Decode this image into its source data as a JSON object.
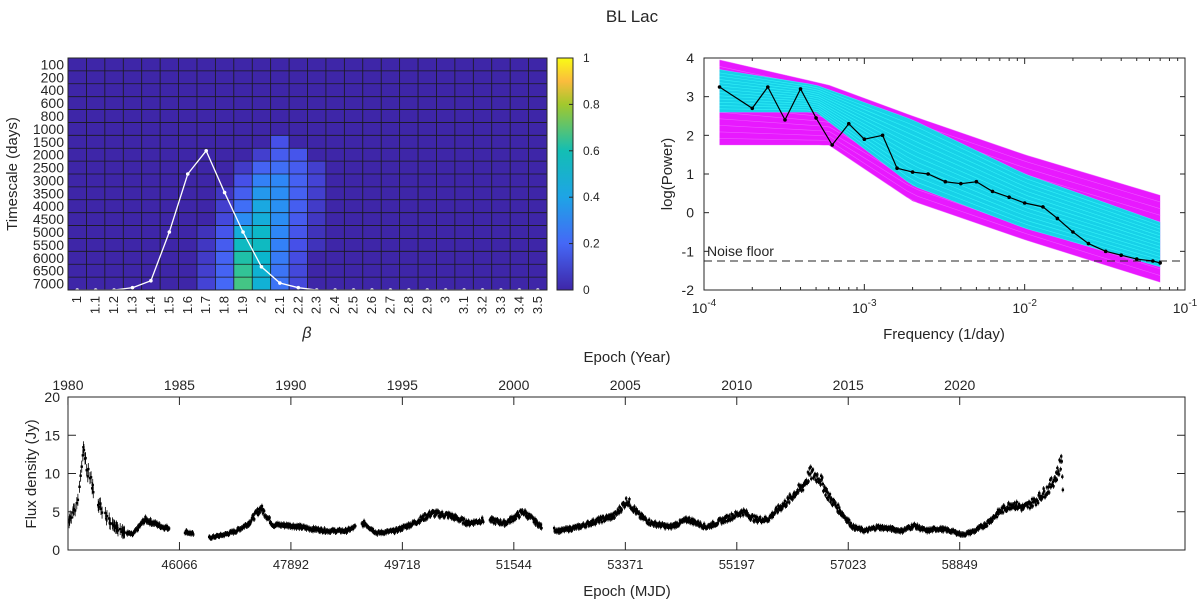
{
  "figure_title": "BL Lac",
  "chart_data": [
    {
      "type": "heatmap",
      "title": "",
      "xlabel": "β",
      "ylabel": "Timescale (days)",
      "x_categories": [
        "1",
        "1.1",
        "1.2",
        "1.3",
        "1.4",
        "1.5",
        "1.6",
        "1.7",
        "1.8",
        "1.9",
        "2",
        "2.1",
        "2.2",
        "2.3",
        "2.4",
        "2.5",
        "2.6",
        "2.7",
        "2.8",
        "2.9",
        "3",
        "3.1",
        "3.2",
        "3.3",
        "3.4",
        "3.5"
      ],
      "y_categories": [
        "100",
        "200",
        "400",
        "600",
        "800",
        "1000",
        "1500",
        "2000",
        "2500",
        "3000",
        "3500",
        "4000",
        "4500",
        "5000",
        "5500",
        "6000",
        "6500",
        "7000"
      ],
      "colorbar": {
        "min": 0,
        "max": 1,
        "ticks": [
          "0",
          "0.2",
          "0.4",
          "0.6",
          "0.8",
          "1"
        ],
        "colormap": "parula"
      },
      "cells": [
        {
          "x": "2.1",
          "y": "1500",
          "v": 0.1
        },
        {
          "x": "2",
          "y": "2000",
          "v": 0.06
        },
        {
          "x": "2.1",
          "y": "2000",
          "v": 0.15
        },
        {
          "x": "2.2",
          "y": "2000",
          "v": 0.12
        },
        {
          "x": "1.9",
          "y": "2500",
          "v": 0.05
        },
        {
          "x": "2",
          "y": "2500",
          "v": 0.18
        },
        {
          "x": "2.1",
          "y": "2500",
          "v": 0.22
        },
        {
          "x": "2.2",
          "y": "2500",
          "v": 0.15
        },
        {
          "x": "2.3",
          "y": "2500",
          "v": 0.06
        },
        {
          "x": "1.9",
          "y": "3000",
          "v": 0.1
        },
        {
          "x": "2",
          "y": "3000",
          "v": 0.28
        },
        {
          "x": "2.1",
          "y": "3000",
          "v": 0.3
        },
        {
          "x": "2.2",
          "y": "3000",
          "v": 0.17
        },
        {
          "x": "2.3",
          "y": "3000",
          "v": 0.07
        },
        {
          "x": "1.8",
          "y": "3500",
          "v": 0.04
        },
        {
          "x": "1.9",
          "y": "3500",
          "v": 0.16
        },
        {
          "x": "2",
          "y": "3500",
          "v": 0.36
        },
        {
          "x": "2.1",
          "y": "3500",
          "v": 0.32
        },
        {
          "x": "2.2",
          "y": "3500",
          "v": 0.17
        },
        {
          "x": "2.3",
          "y": "3500",
          "v": 0.06
        },
        {
          "x": "1.8",
          "y": "4000",
          "v": 0.06
        },
        {
          "x": "1.9",
          "y": "4000",
          "v": 0.22
        },
        {
          "x": "2",
          "y": "4000",
          "v": 0.42
        },
        {
          "x": "2.1",
          "y": "4000",
          "v": 0.33
        },
        {
          "x": "2.2",
          "y": "4000",
          "v": 0.16
        },
        {
          "x": "2.3",
          "y": "4000",
          "v": 0.05
        },
        {
          "x": "1.8",
          "y": "4500",
          "v": 0.08
        },
        {
          "x": "1.9",
          "y": "4500",
          "v": 0.32
        },
        {
          "x": "2",
          "y": "4500",
          "v": 0.45
        },
        {
          "x": "2.1",
          "y": "4500",
          "v": 0.32
        },
        {
          "x": "2.2",
          "y": "4500",
          "v": 0.14
        },
        {
          "x": "2.3",
          "y": "4500",
          "v": 0.04
        },
        {
          "x": "1.7",
          "y": "5000",
          "v": 0.03
        },
        {
          "x": "1.8",
          "y": "5000",
          "v": 0.12
        },
        {
          "x": "1.9",
          "y": "5000",
          "v": 0.45
        },
        {
          "x": "2",
          "y": "5000",
          "v": 0.52
        },
        {
          "x": "2.1",
          "y": "5000",
          "v": 0.3
        },
        {
          "x": "2.2",
          "y": "5000",
          "v": 0.12
        },
        {
          "x": "2.3",
          "y": "5000",
          "v": 0.03
        },
        {
          "x": "1.7",
          "y": "5500",
          "v": 0.04
        },
        {
          "x": "1.8",
          "y": "5500",
          "v": 0.15
        },
        {
          "x": "1.9",
          "y": "5500",
          "v": 0.55
        },
        {
          "x": "2",
          "y": "5500",
          "v": 0.55
        },
        {
          "x": "2.1",
          "y": "5500",
          "v": 0.28
        },
        {
          "x": "2.2",
          "y": "5500",
          "v": 0.1
        },
        {
          "x": "2.3",
          "y": "5500",
          "v": 0.03
        },
        {
          "x": "1.7",
          "y": "6000",
          "v": 0.05
        },
        {
          "x": "1.8",
          "y": "6000",
          "v": 0.18
        },
        {
          "x": "1.9",
          "y": "6000",
          "v": 0.62
        },
        {
          "x": "2",
          "y": "6000",
          "v": 0.5
        },
        {
          "x": "2.1",
          "y": "6000",
          "v": 0.26
        },
        {
          "x": "2.2",
          "y": "6000",
          "v": 0.09
        },
        {
          "x": "1.7",
          "y": "6500",
          "v": 0.06
        },
        {
          "x": "1.8",
          "y": "6500",
          "v": 0.18
        },
        {
          "x": "1.9",
          "y": "6500",
          "v": 0.65
        },
        {
          "x": "2",
          "y": "6500",
          "v": 0.48
        },
        {
          "x": "2.1",
          "y": "6500",
          "v": 0.24
        },
        {
          "x": "2.2",
          "y": "6500",
          "v": 0.08
        },
        {
          "x": "1.7",
          "y": "7000",
          "v": 0.07
        },
        {
          "x": "1.8",
          "y": "7000",
          "v": 0.2
        },
        {
          "x": "1.9",
          "y": "7000",
          "v": 0.68
        },
        {
          "x": "2",
          "y": "7000",
          "v": 0.47
        },
        {
          "x": "2.1",
          "y": "7000",
          "v": 0.24
        },
        {
          "x": "2.2",
          "y": "7000",
          "v": 0.08
        }
      ],
      "overlay_line": {
        "x": [
          "1",
          "1.1",
          "1.2",
          "1.3",
          "1.4",
          "1.5",
          "1.6",
          "1.7",
          "1.8",
          "1.9",
          "2",
          "2.1",
          "2.2",
          "2.3",
          "2.4",
          "2.5",
          "2.6",
          "2.7",
          "2.8",
          "2.9",
          "3",
          "3.1",
          "3.2",
          "3.3",
          "3.4",
          "3.5"
        ],
        "values": [
          0,
          0,
          0,
          0.01,
          0.04,
          0.25,
          0.5,
          0.6,
          0.42,
          0.25,
          0.1,
          0.03,
          0.01,
          0,
          0,
          0,
          0,
          0,
          0,
          0,
          0,
          0,
          0,
          0,
          0,
          0
        ],
        "color": "#ffffff"
      }
    },
    {
      "type": "line",
      "title": "",
      "xlabel": "Frequency (1/day)",
      "ylabel": "log(Power)",
      "xscale": "log",
      "xlim": [
        0.0001,
        0.1
      ],
      "ylim": [
        -2,
        4
      ],
      "xticks": [
        {
          "base": "10",
          "exp": "-4"
        },
        {
          "base": "10",
          "exp": "-3"
        },
        {
          "base": "10",
          "exp": "-2"
        },
        {
          "base": "10",
          "exp": "-1"
        }
      ],
      "yticks": [
        "-2",
        "-1",
        "0",
        "1",
        "2",
        "3",
        "4"
      ],
      "annotation": "Noise floor",
      "noise_floor": -1.25,
      "envelopes": [
        {
          "color": "#e600ff",
          "x": [
            0.000125,
            0.0006,
            0.002,
            0.01,
            0.07
          ],
          "upper": [
            3.95,
            3.3,
            2.5,
            1.5,
            0.45
          ],
          "lower": [
            1.75,
            1.75,
            0.3,
            -0.7,
            -1.8
          ]
        },
        {
          "color": "#00e6e6",
          "x": [
            0.000125,
            0.0005,
            0.002,
            0.01,
            0.07
          ],
          "upper": [
            3.7,
            3.3,
            2.4,
            1.0,
            -0.25
          ],
          "lower": [
            2.6,
            2.6,
            0.7,
            -0.4,
            -1.4
          ]
        }
      ],
      "series": [
        {
          "color": "#000000",
          "x": [
            0.000125,
            0.0002,
            0.00025,
            0.00032,
            0.0004,
            0.0005,
            0.00063,
            0.0008,
            0.001,
            0.0013,
            0.0016,
            0.002,
            0.0025,
            0.0032,
            0.004,
            0.005,
            0.0063,
            0.008,
            0.01,
            0.013,
            0.016,
            0.02,
            0.025,
            0.032,
            0.04,
            0.05,
            0.063,
            0.07
          ],
          "values": [
            3.25,
            2.7,
            3.25,
            2.4,
            3.2,
            2.45,
            1.75,
            2.3,
            1.9,
            2.0,
            1.15,
            1.05,
            1.0,
            0.8,
            0.75,
            0.8,
            0.55,
            0.4,
            0.25,
            0.15,
            -0.15,
            -0.5,
            -0.8,
            -1.0,
            -1.1,
            -1.2,
            -1.25,
            -1.3
          ]
        }
      ]
    },
    {
      "type": "scatter",
      "title": "",
      "xlabel": "Epoch (MJD)",
      "x2label": "Epoch (Year)",
      "ylabel": "Flux density (Jy)",
      "xlim": [
        44240,
        62540
      ],
      "ylim": [
        0,
        20
      ],
      "xticks": [
        "46066",
        "47892",
        "49718",
        "51544",
        "53371",
        "55197",
        "57023",
        "58849"
      ],
      "x2ticks": [
        "1980",
        "1985",
        "1990",
        "1995",
        "2000",
        "2005",
        "2010",
        "2015",
        "2020"
      ],
      "yticks": [
        "0",
        "5",
        "10",
        "15",
        "20"
      ],
      "anchors": {
        "mjd": [
          44240,
          44300,
          44400,
          44480,
          44600,
          44700,
          44900,
          45100,
          45300,
          45500,
          45800,
          46100,
          46500,
          46800,
          47000,
          47200,
          47400,
          47600,
          47900,
          48200,
          48500,
          48800,
          49100,
          49300,
          49600,
          49900,
          50200,
          50500,
          50800,
          51100,
          51400,
          51700,
          52000,
          52300,
          52600,
          52900,
          53200,
          53400,
          53600,
          53800,
          54100,
          54400,
          54700,
          55000,
          55300,
          55500,
          55700,
          55900,
          56050,
          56150,
          56250,
          56400,
          56550,
          56700,
          56900,
          57100,
          57300,
          57500,
          57700,
          57900,
          58100,
          58300,
          58500,
          58700,
          58900,
          59100,
          59300,
          59500,
          59700,
          59900,
          60100,
          60300,
          60450,
          60520,
          60540
        ],
        "flux": [
          3.5,
          4.5,
          6.5,
          12.8,
          9.5,
          6.5,
          4.0,
          2.5,
          2.0,
          4.0,
          3.0,
          2.6,
          1.5,
          2.0,
          2.5,
          3.5,
          5.5,
          3.3,
          3.2,
          2.8,
          2.5,
          2.5,
          3.5,
          2.2,
          2.5,
          3.5,
          4.8,
          4.5,
          3.5,
          4.0,
          3.5,
          5.0,
          3.0,
          2.5,
          3.0,
          3.8,
          4.5,
          6.5,
          4.5,
          3.5,
          3.0,
          4.0,
          3.0,
          4.0,
          5.0,
          4.0,
          4.0,
          5.5,
          6.5,
          7.5,
          8.0,
          10.0,
          9.5,
          7.0,
          5.0,
          3.0,
          2.5,
          3.0,
          2.8,
          2.5,
          3.2,
          2.5,
          2.8,
          2.5,
          2.0,
          2.5,
          3.5,
          5.0,
          6.0,
          5.5,
          6.5,
          8.0,
          10.0,
          12.0,
          8.0
        ]
      },
      "markers": "black dots with error bars"
    }
  ]
}
